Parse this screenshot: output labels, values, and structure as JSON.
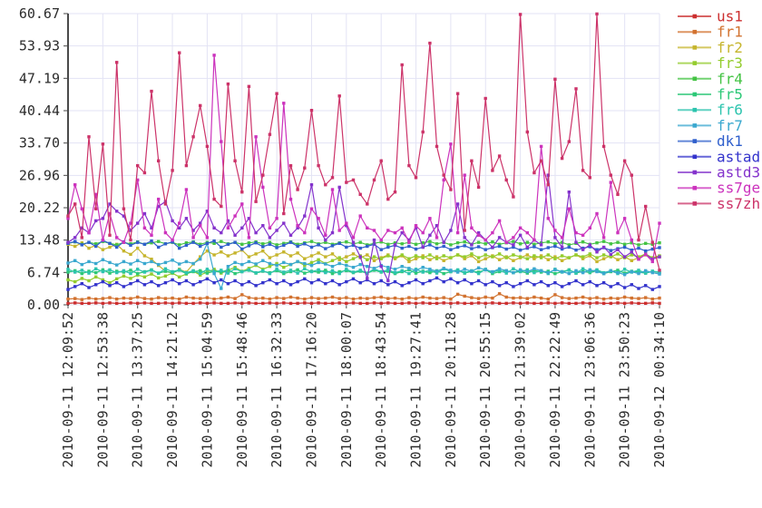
{
  "window": {
    "background": "#ffffff"
  },
  "colors": {
    "grid": "#e3e3f4",
    "axis": "#4a4a4a",
    "tick_text": "#2b2b2b",
    "tick_mark": "#4a4a4a"
  },
  "chart_data": {
    "type": "line",
    "title": "",
    "xlabel": "",
    "ylabel": "",
    "grid": true,
    "legend_position": "right",
    "marker": "square",
    "ylim": [
      0,
      60.67
    ],
    "y_max": 60.67,
    "y_tick_labels": [
      "0.00",
      "6.74",
      "13.48",
      "20.22",
      "26.96",
      "33.70",
      "40.44",
      "47.19",
      "53.93",
      "60.67"
    ],
    "x_labels": [
      "2010-09-11 12:09:52",
      "2010-09-11 12:53:38",
      "2010-09-11 13:37:25",
      "2010-09-11 14:21:12",
      "2010-09-11 15:04:59",
      "2010-09-11 15:48:46",
      "2010-09-11 16:32:33",
      "2010-09-11 17:16:20",
      "2010-09-11 18:00:07",
      "2010-09-11 18:43:54",
      "2010-09-11 19:27:41",
      "2010-09-11 20:11:28",
      "2010-09-11 20:55:15",
      "2010-09-11 21:39:02",
      "2010-09-11 22:22:49",
      "2010-09-11 23:06:36",
      "2010-09-11 23:50:23",
      "2010-09-12 00:34:10"
    ],
    "series": [
      {
        "name": "us1",
        "color": "#cc2f2f",
        "values": [
          0.3,
          0.4,
          0.3,
          0.3,
          0.4,
          0.3,
          0.4,
          0.3,
          0.3,
          0.4,
          0.3,
          0.4,
          0.3,
          0.3,
          0.4,
          0.3,
          0.4,
          0.3,
          0.3,
          0.4,
          0.3,
          0.4,
          0.3,
          0.3,
          0.4,
          0.3,
          0.4,
          0.3,
          0.3,
          0.4,
          0.3,
          0.4,
          0.3,
          0.3,
          0.4,
          0.3,
          0.4,
          0.3,
          0.3,
          0.4,
          0.3,
          0.4,
          0.3,
          0.3,
          0.4,
          0.3,
          0.4,
          0.3,
          0.3,
          0.4,
          0.3,
          0.4,
          0.3,
          0.3,
          0.4,
          0.3,
          0.4,
          0.3,
          0.3,
          0.4,
          0.3,
          0.4,
          0.3,
          0.3,
          0.4,
          0.3,
          0.4,
          0.3,
          0.3,
          0.4,
          0.3,
          0.4,
          0.3,
          0.3,
          0.4,
          0.3,
          0.4,
          0.3,
          0.3,
          0.4,
          0.3,
          0.4,
          0.3,
          0.3,
          0.4,
          0.3
        ]
      },
      {
        "name": "fr1",
        "color": "#d2722f",
        "values": [
          1.2,
          1.3,
          1.1,
          1.4,
          1.2,
          1.3,
          1.5,
          1.2,
          1.4,
          1.3,
          1.6,
          1.3,
          1.2,
          1.5,
          1.3,
          1.4,
          1.2,
          1.6,
          1.4,
          1.3,
          1.5,
          1.2,
          1.4,
          1.6,
          1.3,
          2.1,
          1.5,
          1.3,
          1.4,
          1.2,
          1.5,
          1.3,
          1.6,
          1.4,
          1.2,
          1.5,
          1.3,
          1.4,
          1.6,
          1.3,
          1.5,
          1.2,
          1.4,
          1.3,
          1.5,
          1.6,
          1.3,
          1.4,
          1.2,
          1.5,
          1.3,
          1.6,
          1.4,
          1.3,
          1.5,
          1.2,
          2.2,
          1.8,
          1.5,
          1.3,
          1.6,
          1.4,
          2.3,
          1.6,
          1.4,
          1.5,
          1.3,
          1.6,
          1.4,
          1.2,
          2.1,
          1.5,
          1.3,
          1.4,
          1.6,
          1.3,
          1.5,
          1.2,
          1.4,
          1.3,
          1.6,
          1.4,
          1.3,
          1.5,
          1.2,
          1.4
        ]
      },
      {
        "name": "fr2",
        "color": "#c6b52d",
        "values": [
          12.6,
          12.2,
          12.9,
          11.8,
          12.4,
          11.5,
          12,
          12.6,
          11.2,
          10.5,
          11.8,
          10.2,
          9.5,
          8.2,
          7,
          6.6,
          7.4,
          6.8,
          8.5,
          10,
          11.2,
          10.4,
          11,
          10.2,
          10.8,
          11.4,
          10,
          10.6,
          11.2,
          9.8,
          10.4,
          11,
          10.2,
          10.8,
          9.6,
          10.2,
          10.8,
          10,
          10.6,
          9.4,
          10,
          10.6,
          9.8,
          10.4,
          9.2,
          9.8,
          10.4,
          9.6,
          10.2,
          9,
          9.6,
          10.2,
          9.4,
          10,
          9.2,
          9.8,
          10.4,
          9.6,
          10.2,
          9,
          9.6,
          10.2,
          9.4,
          10,
          9.2,
          9.8,
          10.4,
          9.6,
          10.2,
          9.4,
          10,
          9.2,
          9.8,
          10.4,
          9.6,
          10.2,
          9,
          9.6,
          10.2,
          9.4,
          10,
          9.2,
          9.8,
          10.4,
          9.6,
          10
        ]
      },
      {
        "name": "fr3",
        "color": "#94cc2d",
        "values": [
          5.2,
          4.8,
          5.5,
          5,
          5.8,
          5.2,
          4.6,
          5.4,
          6,
          5.5,
          6.2,
          5.8,
          6.4,
          5.6,
          6,
          6.6,
          5.8,
          6.4,
          7,
          6.2,
          6.8,
          7.4,
          6.6,
          7.2,
          7.8,
          7,
          7.6,
          8.2,
          7.4,
          8,
          8.6,
          7.8,
          8.4,
          9,
          8.2,
          8.8,
          9.4,
          8.6,
          9.2,
          9.8,
          9,
          9.6,
          10.2,
          9.4,
          10,
          9.6,
          10.2,
          9.8,
          10.4,
          9.6,
          10.2,
          9.8,
          10.4,
          9.6,
          10.2,
          9.8,
          10.4,
          10,
          10.6,
          9.8,
          10.4,
          10,
          10.6,
          9.8,
          10.4,
          10,
          9.6,
          10.2,
          9.8,
          10.4,
          9.6,
          10.2,
          9.8,
          10.4,
          10,
          10.6,
          9.8,
          10.4,
          10,
          10.6,
          9.8,
          10.4,
          10,
          10.6,
          9.8,
          10.2
        ]
      },
      {
        "name": "fr4",
        "color": "#44c344",
        "values": [
          12.8,
          13.1,
          12.6,
          13,
          12.7,
          13.2,
          12.8,
          12.5,
          13,
          12.7,
          13.1,
          12.6,
          12.9,
          13.2,
          12.7,
          13,
          12.5,
          12.9,
          13.1,
          12.6,
          13,
          12.8,
          13.2,
          12.7,
          13,
          12.6,
          12.9,
          13.1,
          12.7,
          13,
          12.5,
          12.8,
          13.1,
          12.6,
          12.9,
          13.2,
          12.7,
          13,
          12.6,
          12.9,
          13.1,
          12.7,
          13,
          12.5,
          12.8,
          13.1,
          12.6,
          12.9,
          12.7,
          13,
          12.6,
          12.9,
          13.2,
          12.7,
          13,
          12.5,
          12.9,
          13.1,
          12.6,
          13,
          12.7,
          13.1,
          12.6,
          12.9,
          13.2,
          12.7,
          13,
          12.6,
          12.9,
          13.1,
          12.7,
          13,
          12.5,
          12.8,
          13.1,
          12.6,
          12.9,
          13.2,
          12.7,
          13,
          12.6,
          12.9,
          12.5,
          12.8,
          12.6,
          12.9
        ]
      },
      {
        "name": "fr5",
        "color": "#2dc877",
        "values": [
          6.8,
          7.1,
          6.5,
          7,
          6.7,
          7.3,
          6.6,
          7,
          6.8,
          7.2,
          6.5,
          6.9,
          7.3,
          6.6,
          7,
          6.7,
          7.2,
          6.5,
          6.9,
          7.1,
          6.6,
          7,
          6.8,
          7.3,
          6.5,
          6.9,
          7.2,
          6.6,
          7,
          6.7,
          7.1,
          6.5,
          6.9,
          7.3,
          6.6,
          7,
          6.8,
          7.2,
          6.5,
          6.9,
          7.1,
          6.7,
          7,
          6.6,
          7.2,
          6.8,
          7,
          6.5,
          6.9,
          7.3,
          6.6,
          7,
          6.7,
          7.1,
          6.5,
          6.9,
          7.2,
          6.6,
          7,
          6.8,
          7.3,
          6.5,
          6.9,
          7.1,
          6.7,
          7,
          6.6,
          7.2,
          6.8,
          7,
          6.5,
          6.9,
          7.3,
          6.6,
          7,
          6.7,
          7.1,
          6.5,
          6.9,
          7.2,
          6.6,
          7,
          6.8,
          6.6,
          7,
          6.7
        ]
      },
      {
        "name": "fr6",
        "color": "#2dc4ae",
        "values": [
          7.4,
          6.8,
          7.2,
          6.6,
          7.5,
          6.9,
          7.3,
          6.7,
          7.1,
          6.5,
          7.4,
          6.8,
          7.2,
          6.6,
          7.5,
          6.9,
          7.3,
          6.7,
          7.1,
          6.5,
          7.4,
          6.8,
          7.2,
          6.6,
          7.5,
          6.9,
          7.3,
          6.7,
          7.1,
          6.5,
          7.4,
          6.8,
          7.2,
          6.6,
          7.5,
          6.9,
          7.3,
          6.7,
          7.1,
          6.5,
          7.4,
          6.8,
          7.2,
          6.6,
          7.5,
          6.9,
          7.3,
          6.7,
          7.1,
          6.5,
          7.4,
          6.8,
          7.2,
          6.6,
          7.5,
          6.9,
          7.3,
          6.7,
          7.1,
          6.5,
          7.4,
          6.8,
          7.2,
          6.6,
          7.5,
          6.9,
          7.3,
          6.7,
          7.1,
          6.5,
          7.4,
          6.8,
          7.2,
          6.6,
          7.5,
          6.9,
          7.3,
          6.7,
          7.1,
          6.5,
          7.4,
          6.8,
          7.2,
          6.6,
          7,
          6.8
        ]
      },
      {
        "name": "fr7",
        "color": "#3aa8cf",
        "values": [
          8.7,
          9.2,
          8.4,
          9,
          8.6,
          9.4,
          8.8,
          8.3,
          9,
          8.5,
          9.2,
          8.6,
          9,
          8.4,
          8.8,
          9.3,
          8.5,
          9,
          8.6,
          9.5,
          12.8,
          6.5,
          3.4,
          8,
          8.8,
          8.4,
          9,
          8.5,
          9.2,
          8.6,
          8.2,
          8.8,
          8.4,
          9,
          8.6,
          8.2,
          8.8,
          8.5,
          8,
          8.6,
          8.2,
          7.8,
          8.4,
          8,
          7.6,
          8.2,
          7.8,
          7.4,
          8,
          7.6,
          7.2,
          7.8,
          7.4,
          7,
          7.6,
          7.2,
          6.8,
          7.4,
          7,
          7.7,
          7.3,
          6.9,
          7.5,
          7.1,
          6.7,
          7.3,
          6.9,
          7.5,
          7.1,
          6.7,
          7.3,
          6.9,
          6.5,
          7.1,
          6.7,
          7.3,
          6.9,
          6.5,
          7.1,
          6.7,
          6.3,
          6.9,
          6.5,
          7.1,
          6.7,
          6.4
        ]
      },
      {
        "name": "dk1",
        "color": "#2f5fcc",
        "values": [
          12.8,
          13.2,
          12.5,
          13,
          12.2,
          13.4,
          12.8,
          12,
          13.1,
          12.4,
          13,
          12.6,
          13.3,
          12,
          12.7,
          13.1,
          11.8,
          12.4,
          13,
          12.2,
          12.8,
          13.3,
          12,
          12.6,
          13,
          11.6,
          12.3,
          12.9,
          12.1,
          12.6,
          11.9,
          12.4,
          13,
          12.2,
          12.7,
          12,
          12.5,
          11.7,
          12.3,
          12.8,
          12,
          12.4,
          11.8,
          12.2,
          12.6,
          11.5,
          12,
          12.4,
          11.8,
          12.2,
          11.6,
          12,
          12.5,
          11.8,
          12.2,
          11.5,
          12,
          12.3,
          11.7,
          12.1,
          11.5,
          11.9,
          12.2,
          11.6,
          12,
          11.4,
          11.8,
          12.1,
          11.5,
          11.9,
          12.2,
          11.6,
          12,
          11.4,
          11.8,
          12.1,
          11.5,
          11.9,
          11.3,
          11.7,
          12,
          11.4,
          11.8,
          11.2,
          11.6,
          11.9
        ]
      },
      {
        "name": "astad",
        "color": "#3333cc",
        "values": [
          3.2,
          3.8,
          4.4,
          3.6,
          4.2,
          4.8,
          4,
          4.6,
          3.8,
          4.4,
          5,
          4.2,
          4.8,
          4,
          4.6,
          5.2,
          4.4,
          5,
          4.2,
          4.8,
          5.4,
          4.6,
          5.2,
          4.4,
          5,
          4.2,
          4.8,
          4,
          4.6,
          5.2,
          4.4,
          5,
          4.2,
          4.8,
          5.4,
          4.6,
          5.2,
          4.4,
          5,
          4.2,
          4.8,
          5.4,
          4.6,
          5.2,
          4.4,
          5,
          4.2,
          4.8,
          4,
          4.6,
          5.2,
          4.4,
          5,
          5.6,
          4.8,
          5.4,
          4.6,
          5.2,
          4.4,
          5,
          4.2,
          4.8,
          4,
          4.6,
          3.8,
          4.4,
          5,
          4.2,
          4.8,
          4,
          4.6,
          3.8,
          4.4,
          5,
          4.2,
          4.8,
          4,
          4.6,
          3.8,
          4.4,
          3.6,
          4.2,
          3.4,
          4,
          3.2,
          3.8
        ]
      },
      {
        "name": "astd3",
        "color": "#8433cc",
        "values": [
          13,
          14,
          16,
          15,
          17.5,
          18,
          21,
          19.5,
          18.5,
          15.5,
          17,
          19,
          16,
          20.5,
          21.5,
          17.5,
          16,
          18,
          15.5,
          17,
          19.5,
          16,
          15,
          17.5,
          14.5,
          16,
          18,
          15,
          16.5,
          14,
          15.5,
          17,
          14.5,
          16,
          18.5,
          25,
          16,
          13.5,
          15,
          24.5,
          16.5,
          13,
          10,
          5.5,
          13.5,
          8,
          5,
          12.5,
          15,
          13.5,
          16,
          12,
          14.5,
          16.5,
          13,
          15.5,
          21,
          14,
          12.5,
          15,
          13.5,
          12,
          14,
          13,
          12.5,
          14.5,
          12,
          13.5,
          12.5,
          27,
          14,
          12,
          23.5,
          13,
          11.5,
          12.5,
          11,
          12,
          10.5,
          11.5,
          10,
          11,
          9.5,
          10.5,
          9.5,
          10
        ]
      },
      {
        "name": "ss7ge",
        "color": "#cc33bd",
        "values": [
          18,
          25,
          20,
          15,
          23,
          13.5,
          19,
          14,
          13,
          17,
          26,
          16,
          14.5,
          22,
          15,
          13.5,
          17,
          24,
          14,
          16.5,
          14,
          52,
          34,
          16,
          18.5,
          21,
          14,
          35,
          24.5,
          16,
          18,
          42,
          22,
          16.5,
          15,
          20,
          18,
          14.5,
          24,
          15.5,
          17,
          14,
          18.5,
          16,
          15.5,
          13.5,
          15.5,
          15,
          16,
          13,
          16.5,
          15,
          18,
          14,
          26,
          33.5,
          15,
          27,
          16,
          14.5,
          13.5,
          15,
          17.5,
          13,
          14,
          16,
          15,
          13.5,
          33,
          18,
          15.5,
          14,
          20,
          15,
          14.5,
          16,
          19,
          14,
          25.5,
          15,
          18,
          13.5,
          9.5,
          10.5,
          9,
          17
        ]
      },
      {
        "name": "ss7zh",
        "color": "#cc3369",
        "values": [
          18.5,
          21,
          14,
          35,
          20,
          33.5,
          14.5,
          50.5,
          20,
          13.5,
          29,
          27.5,
          44.5,
          30,
          21,
          28,
          52.5,
          29,
          35,
          41.5,
          33,
          22,
          20.5,
          46,
          30,
          23.5,
          45.5,
          21.5,
          27,
          35.5,
          44,
          19,
          29,
          24,
          28.5,
          40.5,
          29,
          25,
          26.5,
          43.5,
          25.5,
          26,
          23,
          21,
          26,
          30,
          22,
          23.5,
          50,
          29,
          26.5,
          36,
          54.5,
          33,
          27,
          24,
          44,
          15.5,
          30,
          24.5,
          43,
          28,
          31,
          26,
          22.5,
          60.5,
          36,
          27.5,
          30,
          25,
          47,
          30.5,
          34,
          45,
          28,
          26.5,
          60.6,
          33,
          27,
          23,
          30,
          27,
          13.5,
          20.5,
          13,
          7.2
        ]
      }
    ]
  }
}
